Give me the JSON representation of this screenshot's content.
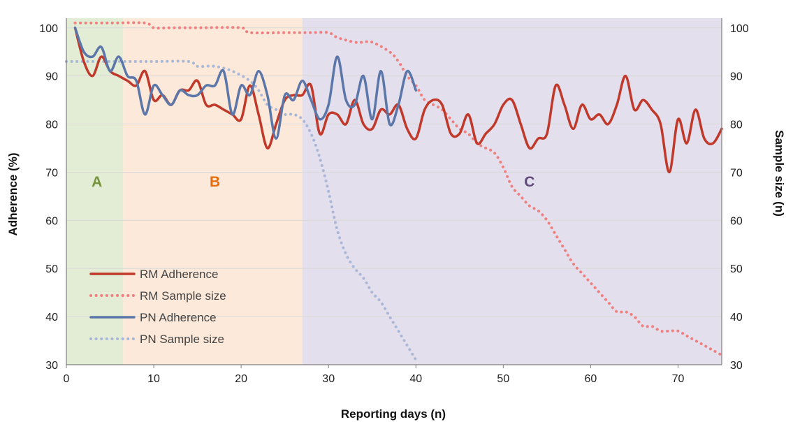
{
  "chart_data": {
    "type": "line",
    "xlabel": "Reporting days (n)",
    "ylabel_left": "Adherence (%)",
    "ylabel_right": "Sample size (n)",
    "xlim": [
      0,
      75
    ],
    "ylim": [
      30,
      102
    ],
    "y2lim": [
      30,
      102
    ],
    "x_ticks": [
      0,
      10,
      20,
      30,
      40,
      50,
      60,
      70
    ],
    "y_ticks": [
      30,
      40,
      50,
      60,
      70,
      80,
      90,
      100
    ],
    "y2_ticks": [
      30,
      40,
      50,
      60,
      70,
      80,
      90,
      100
    ],
    "grid": "horizontal",
    "legend_position": "bottom-left",
    "regions": [
      {
        "label": "A",
        "x_start": 0,
        "x_end": 6.5,
        "fill": "#e3edd5",
        "label_color": "#76933c",
        "label_x": 3.5,
        "label_y": 68
      },
      {
        "label": "B",
        "x_start": 6.5,
        "x_end": 27,
        "fill": "#fde9d9",
        "label_color": "#e46c0a",
        "label_x": 17,
        "label_y": 68
      },
      {
        "label": "C",
        "x_start": 27,
        "x_end": 75,
        "fill": "#e4dfec",
        "label_color": "#5f497a",
        "label_x": 53,
        "label_y": 68
      }
    ],
    "series": [
      {
        "name": "RM Adherence",
        "color": "#c0392b",
        "style": "solid",
        "axis": "left",
        "x": [
          1,
          2,
          3,
          4,
          5,
          6,
          7,
          8,
          9,
          10,
          11,
          12,
          13,
          14,
          15,
          16,
          17,
          18,
          19,
          20,
          21,
          22,
          23,
          24,
          25,
          26,
          27,
          28,
          29,
          30,
          31,
          32,
          33,
          34,
          35,
          36,
          37,
          38,
          39,
          40,
          41,
          42,
          43,
          44,
          45,
          46,
          47,
          48,
          49,
          50,
          51,
          52,
          53,
          54,
          55,
          56,
          57,
          58,
          59,
          60,
          61,
          62,
          63,
          64,
          65,
          66,
          67,
          68,
          69,
          70,
          71,
          72,
          73,
          74,
          75
        ],
        "values": [
          100,
          93,
          90,
          94,
          91,
          90,
          89,
          88,
          91,
          85,
          86,
          84,
          87,
          87,
          89,
          84,
          84,
          83,
          82,
          81,
          88,
          82,
          75,
          80,
          85,
          86,
          86,
          88,
          78,
          82,
          82,
          80,
          85,
          80,
          79,
          83,
          82,
          84,
          79,
          77,
          83,
          85,
          84,
          78,
          78,
          82,
          76,
          78,
          80,
          84,
          85,
          80,
          75,
          77,
          78,
          88,
          84,
          79,
          84,
          81,
          82,
          80,
          84,
          90,
          83,
          85,
          83,
          80,
          70,
          81,
          76,
          83,
          77,
          76,
          79
        ],
        "y_min_note": ""
      },
      {
        "name": "RM Sample size",
        "color": "#f08080",
        "style": "dotted",
        "axis": "right",
        "x": [
          1,
          5,
          9,
          10,
          12,
          15,
          20,
          21,
          25,
          28,
          30,
          31,
          33,
          34,
          35,
          37,
          38,
          39,
          40,
          41,
          42,
          43,
          44,
          45,
          46,
          47,
          48,
          49,
          50,
          51,
          52,
          53,
          54,
          55,
          56,
          57,
          58,
          59,
          60,
          61,
          62,
          63,
          64,
          65,
          66,
          67,
          68,
          69,
          70,
          71,
          72,
          73,
          74,
          75
        ],
        "values": [
          101,
          101,
          101,
          100,
          100,
          100,
          100,
          99,
          99,
          99,
          99,
          98,
          97,
          97,
          97,
          95,
          93,
          90,
          88,
          85,
          84,
          83,
          81,
          79,
          78,
          76,
          75,
          74,
          71,
          67,
          65,
          63,
          62,
          60,
          57,
          54,
          51,
          49,
          47,
          45,
          43,
          41,
          41,
          40,
          38,
          38,
          37,
          37,
          37,
          36,
          35,
          34,
          33,
          32
        ]
      },
      {
        "name": "PN Adherence",
        "color": "#5b76a8",
        "style": "solid",
        "axis": "left",
        "x": [
          1,
          2,
          3,
          4,
          5,
          6,
          7,
          8,
          9,
          10,
          11,
          12,
          13,
          14,
          15,
          16,
          17,
          18,
          19,
          20,
          21,
          22,
          23,
          24,
          25,
          26,
          27,
          28,
          29,
          30,
          31,
          32,
          33,
          34,
          35,
          36,
          37,
          38,
          39,
          40
        ],
        "values": [
          100,
          95,
          94,
          96,
          91,
          94,
          90,
          89,
          82,
          88,
          86,
          84,
          87,
          86,
          86,
          88,
          88,
          91,
          82,
          88,
          86,
          91,
          86,
          77,
          86,
          85,
          89,
          85,
          81,
          84,
          94,
          85,
          84,
          90,
          81,
          91,
          80,
          84,
          91,
          87
        ]
      },
      {
        "name": "PN Sample size",
        "color": "#a9b8d8",
        "style": "dotted",
        "axis": "right",
        "x": [
          0,
          2,
          5,
          7,
          10,
          14,
          15,
          17,
          19,
          21,
          22,
          23,
          24,
          25,
          26,
          27,
          28,
          29,
          30,
          31,
          32,
          33,
          34,
          35,
          36,
          37,
          38,
          39,
          40
        ],
        "values": [
          93,
          93,
          93,
          93,
          93,
          93,
          92,
          92,
          91,
          89,
          87,
          84,
          83,
          82,
          82,
          81,
          78,
          73,
          66,
          58,
          53,
          50,
          48,
          45,
          43,
          40,
          37,
          34,
          31
        ]
      }
    ]
  }
}
